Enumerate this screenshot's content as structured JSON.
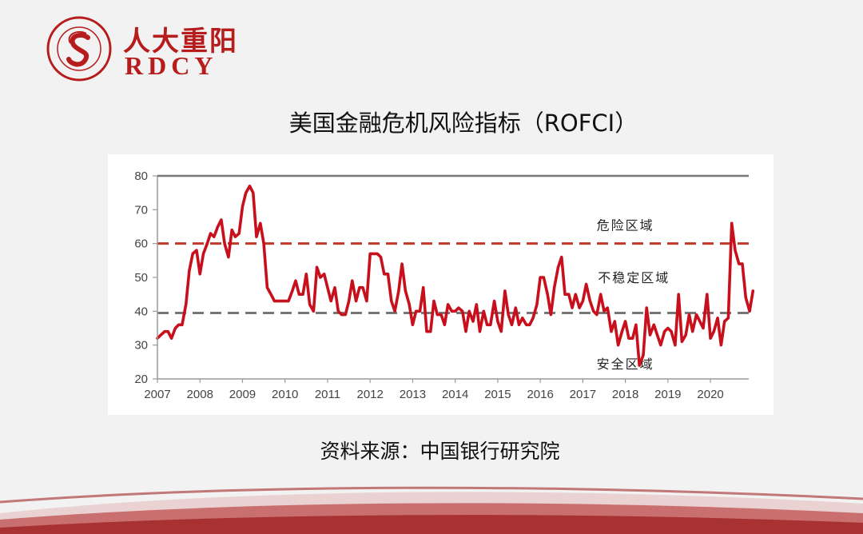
{
  "logo": {
    "name_cn": "人大重阳",
    "name_en": "RDCY"
  },
  "slide": {
    "title": "美国金融危机风险指标（ROFCI）",
    "source": "资料来源：中国银行研究院"
  },
  "colors": {
    "brand_red": "#b71c1c",
    "series_line": "#c8101c",
    "danger_line": "#c0392b",
    "safe_line": "#777777"
  },
  "chart_data": {
    "type": "line",
    "title": "",
    "xlabel": "",
    "ylabel": "",
    "ylim": [
      20,
      80
    ],
    "yticks": [
      20,
      30,
      40,
      50,
      60,
      70,
      80
    ],
    "xlim": [
      2007,
      2020.9
    ],
    "xticks": [
      "2007",
      "2008",
      "2009",
      "2010",
      "2011",
      "2012",
      "2013",
      "2014",
      "2015",
      "2016",
      "2017",
      "2018",
      "2019",
      "2020"
    ],
    "grid": false,
    "legend": "none",
    "thresholds": [
      {
        "value": 60,
        "style": "dashed",
        "color": "#c0392b"
      },
      {
        "value": 39.5,
        "style": "dashed",
        "color": "#777777"
      }
    ],
    "region_labels": [
      {
        "text": "危险区域",
        "x": 2018.0,
        "y": 65.5
      },
      {
        "text": "不稳定区域",
        "x": 2018.2,
        "y": 50
      },
      {
        "text": "安全区域",
        "x": 2018.0,
        "y": 24.5
      }
    ],
    "series": [
      {
        "points": [
          [
            2007.0,
            32
          ],
          [
            2007.08,
            33
          ],
          [
            2007.17,
            34
          ],
          [
            2007.25,
            34
          ],
          [
            2007.33,
            32
          ],
          [
            2007.42,
            35
          ],
          [
            2007.5,
            36
          ],
          [
            2007.58,
            36
          ],
          [
            2007.67,
            42
          ],
          [
            2007.75,
            52
          ],
          [
            2007.83,
            57
          ],
          [
            2007.92,
            58
          ],
          [
            2008.0,
            51
          ],
          [
            2008.08,
            57
          ],
          [
            2008.17,
            60
          ],
          [
            2008.25,
            63
          ],
          [
            2008.33,
            62
          ],
          [
            2008.42,
            65
          ],
          [
            2008.5,
            67
          ],
          [
            2008.58,
            60
          ],
          [
            2008.67,
            56
          ],
          [
            2008.75,
            64
          ],
          [
            2008.83,
            62
          ],
          [
            2008.92,
            63
          ],
          [
            2009.0,
            71
          ],
          [
            2009.08,
            75
          ],
          [
            2009.17,
            77
          ],
          [
            2009.25,
            75
          ],
          [
            2009.33,
            62
          ],
          [
            2009.42,
            66
          ],
          [
            2009.5,
            60
          ],
          [
            2009.58,
            47
          ],
          [
            2009.67,
            45
          ],
          [
            2009.75,
            43
          ],
          [
            2009.83,
            43
          ],
          [
            2009.92,
            43
          ],
          [
            2010.0,
            43
          ],
          [
            2010.08,
            43
          ],
          [
            2010.17,
            46
          ],
          [
            2010.25,
            49
          ],
          [
            2010.33,
            45
          ],
          [
            2010.42,
            45
          ],
          [
            2010.5,
            51
          ],
          [
            2010.58,
            42
          ],
          [
            2010.67,
            40
          ],
          [
            2010.75,
            53
          ],
          [
            2010.83,
            50
          ],
          [
            2010.92,
            51
          ],
          [
            2011.0,
            47
          ],
          [
            2011.08,
            43
          ],
          [
            2011.17,
            47
          ],
          [
            2011.25,
            40
          ],
          [
            2011.33,
            39
          ],
          [
            2011.42,
            39
          ],
          [
            2011.5,
            43
          ],
          [
            2011.58,
            49
          ],
          [
            2011.67,
            43
          ],
          [
            2011.75,
            47
          ],
          [
            2011.83,
            47
          ],
          [
            2011.92,
            43
          ],
          [
            2012.0,
            57
          ],
          [
            2012.08,
            57
          ],
          [
            2012.17,
            57
          ],
          [
            2012.25,
            56
          ],
          [
            2012.33,
            51
          ],
          [
            2012.42,
            51
          ],
          [
            2012.5,
            43
          ],
          [
            2012.58,
            40
          ],
          [
            2012.67,
            46
          ],
          [
            2012.75,
            54
          ],
          [
            2012.83,
            46
          ],
          [
            2012.92,
            42
          ],
          [
            2013.0,
            36
          ],
          [
            2013.08,
            40
          ],
          [
            2013.17,
            40
          ],
          [
            2013.25,
            47
          ],
          [
            2013.33,
            34
          ],
          [
            2013.42,
            34
          ],
          [
            2013.5,
            43
          ],
          [
            2013.58,
            39
          ],
          [
            2013.67,
            39
          ],
          [
            2013.75,
            36
          ],
          [
            2013.83,
            42
          ],
          [
            2013.92,
            40
          ],
          [
            2014.0,
            40
          ],
          [
            2014.08,
            41
          ],
          [
            2014.17,
            40
          ],
          [
            2014.25,
            34
          ],
          [
            2014.33,
            40
          ],
          [
            2014.42,
            37
          ],
          [
            2014.5,
            42
          ],
          [
            2014.58,
            34
          ],
          [
            2014.67,
            40
          ],
          [
            2014.75,
            36
          ],
          [
            2014.83,
            36
          ],
          [
            2014.92,
            43
          ],
          [
            2015.0,
            37
          ],
          [
            2015.08,
            34
          ],
          [
            2015.17,
            46
          ],
          [
            2015.25,
            39
          ],
          [
            2015.33,
            36
          ],
          [
            2015.42,
            41
          ],
          [
            2015.5,
            36
          ],
          [
            2015.58,
            38
          ],
          [
            2015.67,
            36
          ],
          [
            2015.75,
            36
          ],
          [
            2015.83,
            38
          ],
          [
            2015.92,
            42
          ],
          [
            2016.0,
            50
          ],
          [
            2016.08,
            50
          ],
          [
            2016.17,
            45
          ],
          [
            2016.25,
            39
          ],
          [
            2016.33,
            47
          ],
          [
            2016.42,
            53
          ],
          [
            2016.5,
            56
          ],
          [
            2016.58,
            45
          ],
          [
            2016.67,
            45
          ],
          [
            2016.75,
            41
          ],
          [
            2016.83,
            45
          ],
          [
            2016.92,
            41
          ],
          [
            2017.0,
            43
          ],
          [
            2017.08,
            48
          ],
          [
            2017.17,
            43
          ],
          [
            2017.25,
            40
          ],
          [
            2017.33,
            39
          ],
          [
            2017.42,
            45
          ],
          [
            2017.5,
            40
          ],
          [
            2017.58,
            41
          ],
          [
            2017.67,
            34
          ],
          [
            2017.75,
            37
          ],
          [
            2017.83,
            30
          ],
          [
            2017.92,
            34
          ],
          [
            2018.0,
            37
          ],
          [
            2018.08,
            32
          ],
          [
            2018.17,
            32
          ],
          [
            2018.25,
            36
          ],
          [
            2018.33,
            24
          ],
          [
            2018.42,
            27
          ],
          [
            2018.5,
            41
          ],
          [
            2018.58,
            33
          ],
          [
            2018.67,
            36
          ],
          [
            2018.75,
            33
          ],
          [
            2018.83,
            30
          ],
          [
            2018.92,
            34
          ],
          [
            2019.0,
            35
          ],
          [
            2019.08,
            34
          ],
          [
            2019.17,
            30
          ],
          [
            2019.25,
            45
          ],
          [
            2019.33,
            31
          ],
          [
            2019.42,
            33
          ],
          [
            2019.5,
            39
          ],
          [
            2019.58,
            34
          ],
          [
            2019.67,
            39
          ],
          [
            2019.75,
            37
          ],
          [
            2019.83,
            35
          ],
          [
            2019.92,
            45
          ],
          [
            2020.0,
            32
          ],
          [
            2020.08,
            34
          ],
          [
            2020.17,
            38
          ],
          [
            2020.25,
            30
          ],
          [
            2020.33,
            37
          ],
          [
            2020.42,
            38
          ],
          [
            2020.5,
            66
          ],
          [
            2020.58,
            58
          ],
          [
            2020.67,
            54
          ],
          [
            2020.75,
            54
          ],
          [
            2020.83,
            44
          ],
          [
            2020.92,
            40
          ],
          [
            2021.0,
            46
          ]
        ]
      }
    ]
  }
}
